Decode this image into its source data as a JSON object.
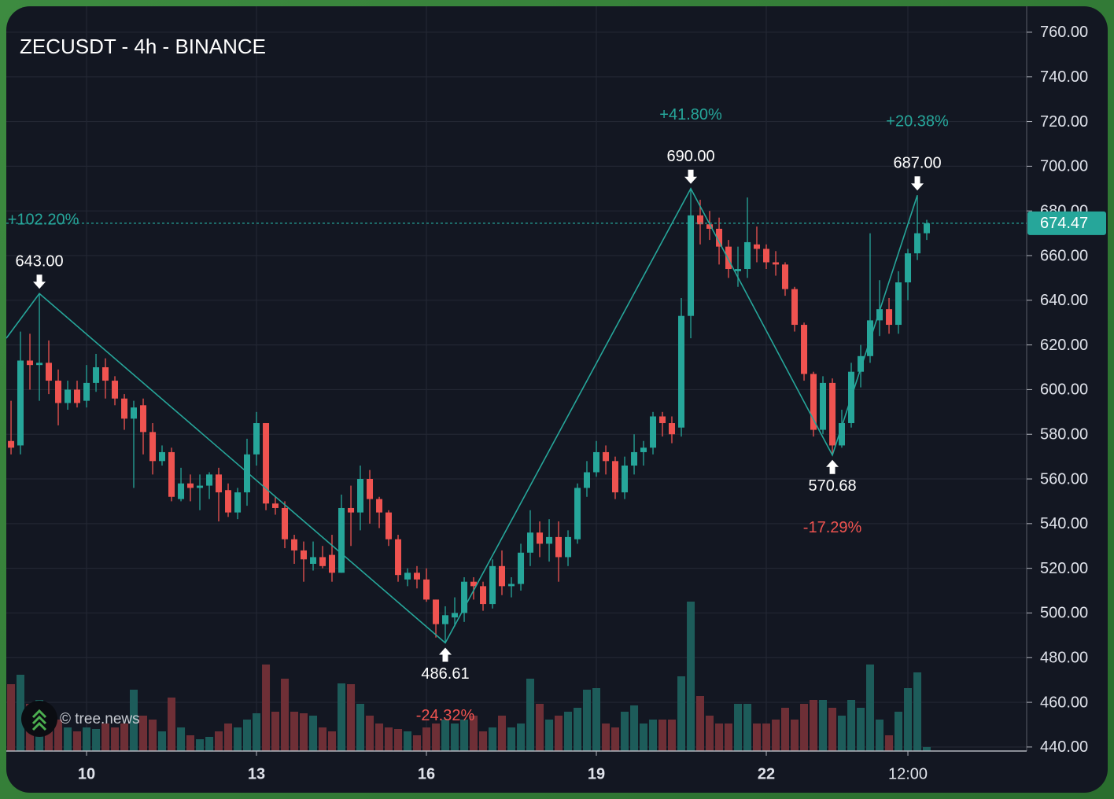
{
  "chart_data": {
    "type": "candlestick",
    "title": "ZECUSDT - 4h - BINANCE",
    "watermark": "© tree.news",
    "x": [
      8.667,
      8.833,
      9,
      9.167,
      9.333,
      9.5,
      9.667,
      9.833,
      10,
      10.167,
      10.333,
      10.5,
      10.667,
      10.833,
      11,
      11.167,
      11.333,
      11.5,
      11.667,
      11.833,
      12,
      12.167,
      12.333,
      12.5,
      12.667,
      12.833,
      13,
      13.167,
      13.333,
      13.5,
      13.667,
      13.833,
      14,
      14.167,
      14.333,
      14.5,
      14.667,
      14.833,
      15,
      15.167,
      15.333,
      15.5,
      15.667,
      15.833,
      16,
      16.167,
      16.333,
      16.5,
      16.667,
      16.833,
      17,
      17.167,
      17.333,
      17.5,
      17.667,
      17.833,
      18,
      18.167,
      18.333,
      18.5,
      18.667,
      18.833,
      19,
      19.167,
      19.333,
      19.5,
      19.667,
      19.833,
      20,
      20.167,
      20.333,
      20.5,
      20.667,
      20.833,
      21,
      21.167,
      21.333,
      21.5,
      21.667,
      21.833,
      22,
      22.167,
      22.333,
      22.5,
      22.667,
      22.833,
      23,
      23.167,
      23.333,
      23.5,
      23.667,
      23.833,
      24,
      24.167,
      24.333,
      24.5,
      24.667,
      24.833
    ],
    "open": [
      577,
      575,
      613,
      611,
      612,
      604,
      594,
      600,
      595,
      603,
      610,
      604,
      596,
      587,
      593,
      581,
      568,
      572,
      551,
      558,
      556,
      557,
      562,
      555,
      545,
      554,
      571,
      585,
      549,
      547,
      533,
      528,
      522,
      525,
      526,
      518,
      547,
      545,
      560,
      551,
      545,
      533,
      515,
      518,
      515,
      506,
      495,
      498,
      500,
      514,
      512,
      504,
      521,
      512,
      513,
      527,
      536,
      531,
      534,
      525,
      533,
      556,
      563,
      572,
      568,
      554,
      566,
      572,
      574,
      588,
      585,
      583,
      633,
      678,
      674,
      672,
      664,
      653,
      654,
      665,
      663,
      657,
      656,
      645,
      629,
      607,
      582,
      603,
      575,
      585,
      608,
      615,
      631,
      636,
      629,
      648,
      661,
      670
    ],
    "high": [
      595,
      626,
      625,
      643,
      622,
      609,
      604,
      604,
      611,
      616,
      614,
      606,
      598,
      595,
      596,
      585,
      575,
      574,
      565,
      562,
      562,
      563,
      565,
      558,
      556,
      578,
      590,
      585,
      552,
      550,
      535,
      532,
      532,
      530,
      535,
      553,
      557,
      566,
      564,
      552,
      546,
      535,
      520,
      521,
      520,
      506,
      503,
      507,
      516,
      516,
      514,
      524,
      528,
      516,
      531,
      546,
      541,
      542,
      541,
      537,
      558,
      568,
      577,
      575,
      570,
      570,
      580,
      577,
      590,
      590,
      588,
      641,
      690,
      685,
      680,
      677,
      667,
      664,
      686,
      673,
      665,
      662,
      657,
      646,
      630,
      608,
      606,
      605,
      591,
      612,
      620,
      670,
      649,
      641,
      653,
      663,
      687,
      676
    ],
    "low": [
      571,
      571,
      600,
      595,
      598,
      584,
      591,
      592,
      592,
      599,
      596,
      593,
      582,
      556,
      571,
      562,
      566,
      550,
      550,
      550,
      546,
      551,
      541,
      543,
      542,
      548,
      566,
      546,
      544,
      529,
      522,
      514,
      519,
      520,
      514,
      518,
      530,
      537,
      540,
      538,
      530,
      514,
      512,
      511,
      505,
      489,
      486.61,
      494,
      496,
      506,
      501,
      502,
      508,
      507,
      510,
      521,
      525,
      523,
      514,
      521,
      531,
      552,
      561,
      562,
      551,
      551,
      562,
      566,
      571,
      579,
      576,
      579,
      623,
      665,
      667,
      656,
      650,
      646,
      650,
      657,
      654,
      651,
      642,
      626,
      604,
      579,
      580,
      570.68,
      574,
      583,
      601,
      612,
      624,
      625,
      625,
      640,
      658,
      667
    ],
    "close": [
      574,
      613,
      611,
      612,
      604,
      594,
      600,
      594,
      603,
      610,
      604,
      596,
      587,
      592,
      581,
      568,
      572,
      552,
      558,
      556,
      557,
      562,
      554,
      545,
      554,
      571,
      585,
      549,
      547,
      533,
      528,
      524,
      525,
      521,
      518,
      547,
      545,
      560,
      551,
      545,
      533,
      517,
      518,
      515,
      506,
      495,
      499,
      500,
      514,
      512,
      504,
      521,
      512,
      513,
      527,
      536,
      531,
      534,
      525,
      534,
      556,
      563,
      572,
      568,
      554,
      566,
      572,
      574,
      588,
      585,
      580,
      633,
      678,
      674,
      672,
      664,
      654,
      654,
      666,
      663,
      657,
      656,
      645,
      629,
      607,
      582,
      603,
      575,
      585,
      608,
      615,
      631,
      636,
      629,
      648,
      661,
      670,
      674.47
    ],
    "volume": [
      85,
      97,
      60,
      65,
      50,
      40,
      30,
      25,
      30,
      28,
      35,
      30,
      35,
      78,
      45,
      40,
      25,
      68,
      30,
      20,
      15,
      18,
      25,
      35,
      30,
      40,
      48,
      110,
      50,
      92,
      50,
      48,
      45,
      30,
      25,
      86,
      85,
      60,
      45,
      35,
      30,
      28,
      25,
      20,
      30,
      35,
      40,
      35,
      40,
      45,
      25,
      30,
      45,
      30,
      35,
      92,
      60,
      40,
      45,
      50,
      55,
      78,
      80,
      35,
      30,
      50,
      58,
      35,
      40,
      40,
      40,
      95,
      190,
      70,
      45,
      35,
      35,
      60,
      60,
      35,
      35,
      40,
      55,
      40,
      60,
      65,
      65,
      55,
      45,
      65,
      55,
      110,
      40,
      20,
      50,
      80,
      100,
      5
    ],
    "up_color": "#26a69a",
    "down_color": "#ef5350",
    "up_volume_color": "#1d5c5a",
    "down_volume_color": "#6e2f36",
    "zigzag": {
      "x": [
        8.583,
        9.167,
        16.333,
        20.667,
        23.167,
        24.667
      ],
      "y": [
        623,
        643,
        486.61,
        690,
        570.68,
        687
      ],
      "labels": [
        null,
        "643.00",
        "486.61",
        "690.00",
        "570.68",
        "687.00"
      ],
      "changes": [
        null,
        "+102.20%",
        "-24.32%",
        "+41.80%",
        "-17.29%",
        "+20.38%"
      ]
    },
    "xlim": [
      8.583,
      26.597
    ],
    "xticks": [
      10,
      13,
      16,
      19,
      22,
      {
        "value": 24.5,
        "label": "12:00"
      }
    ],
    "ylim": [
      438.2,
      771.6
    ],
    "yticks": [
      {
        "value": 440,
        "label": "440.00"
      },
      {
        "value": 460,
        "label": "460.00"
      },
      {
        "value": 480,
        "label": "480.00"
      },
      {
        "value": 500,
        "label": "500.00"
      },
      {
        "value": 520,
        "label": "520.00"
      },
      {
        "value": 540,
        "label": "540.00"
      },
      {
        "value": 560,
        "label": "560.00"
      },
      {
        "value": 580,
        "label": "580.00"
      },
      {
        "value": 600,
        "label": "600.00"
      },
      {
        "value": 620,
        "label": "620.00"
      },
      {
        "value": 640,
        "label": "640.00"
      },
      {
        "value": 660,
        "label": "660.00"
      },
      {
        "value": 680,
        "label": "680.00"
      },
      {
        "value": 700,
        "label": "700.00"
      },
      {
        "value": 720,
        "label": "720.00"
      },
      {
        "value": 740,
        "label": "740.00"
      },
      {
        "value": 760,
        "label": "760.00"
      }
    ],
    "grid": true
  }
}
